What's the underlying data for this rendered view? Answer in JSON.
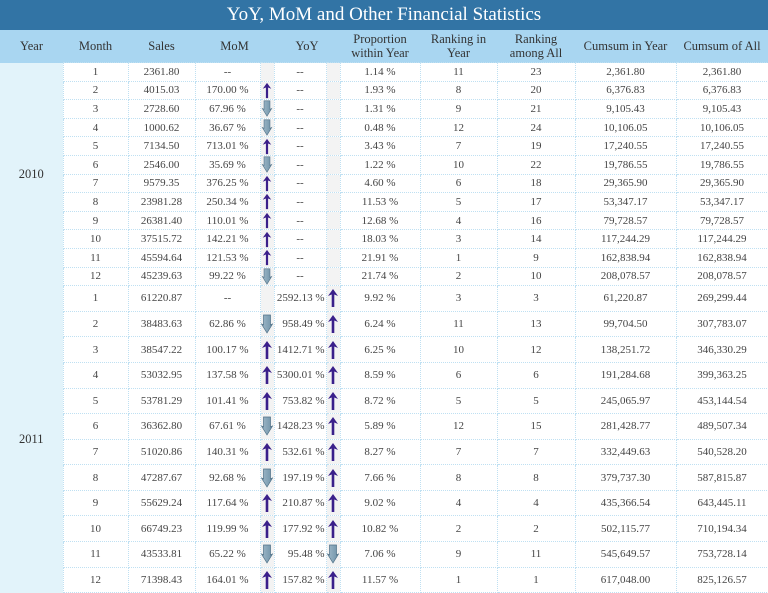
{
  "title": "YoY, MoM and Other Financial Statistics",
  "colors": {
    "title_bg": "#3274a5",
    "header_bg": "#a9d6f1",
    "year_bg": "#e2f3fa",
    "up_arrow": "#3a1f8a",
    "down_arrow": "#6f92a8"
  },
  "headers": {
    "year": "Year",
    "month": "Month",
    "sales": "Sales",
    "mom": "MoM",
    "yoy": "YoY",
    "proportion": "Proportion within Year",
    "rank_year": "Ranking in Year",
    "rank_all": "Ranking among All",
    "cumsum_year": "Cumsum in Year",
    "cumsum_all": "Cumsum of All"
  },
  "groups": [
    {
      "year": "2010",
      "rows": [
        {
          "month": "1",
          "sales": "2361.80",
          "mom": "--",
          "mom_trend": null,
          "yoy": "--",
          "yoy_trend": null,
          "proportion": "1.14 %",
          "rank_year": "11",
          "rank_all": "23",
          "cumsum_year": "2,361.80",
          "cumsum_all": "2,361.80"
        },
        {
          "month": "2",
          "sales": "4015.03",
          "mom": "170.00 %",
          "mom_trend": "up",
          "yoy": "--",
          "yoy_trend": null,
          "proportion": "1.93 %",
          "rank_year": "8",
          "rank_all": "20",
          "cumsum_year": "6,376.83",
          "cumsum_all": "6,376.83"
        },
        {
          "month": "3",
          "sales": "2728.60",
          "mom": "67.96 %",
          "mom_trend": "down",
          "yoy": "--",
          "yoy_trend": null,
          "proportion": "1.31 %",
          "rank_year": "9",
          "rank_all": "21",
          "cumsum_year": "9,105.43",
          "cumsum_all": "9,105.43"
        },
        {
          "month": "4",
          "sales": "1000.62",
          "mom": "36.67 %",
          "mom_trend": "down",
          "yoy": "--",
          "yoy_trend": null,
          "proportion": "0.48 %",
          "rank_year": "12",
          "rank_all": "24",
          "cumsum_year": "10,106.05",
          "cumsum_all": "10,106.05"
        },
        {
          "month": "5",
          "sales": "7134.50",
          "mom": "713.01 %",
          "mom_trend": "up",
          "yoy": "--",
          "yoy_trend": null,
          "proportion": "3.43 %",
          "rank_year": "7",
          "rank_all": "19",
          "cumsum_year": "17,240.55",
          "cumsum_all": "17,240.55"
        },
        {
          "month": "6",
          "sales": "2546.00",
          "mom": "35.69 %",
          "mom_trend": "down",
          "yoy": "--",
          "yoy_trend": null,
          "proportion": "1.22 %",
          "rank_year": "10",
          "rank_all": "22",
          "cumsum_year": "19,786.55",
          "cumsum_all": "19,786.55"
        },
        {
          "month": "7",
          "sales": "9579.35",
          "mom": "376.25 %",
          "mom_trend": "up",
          "yoy": "--",
          "yoy_trend": null,
          "proportion": "4.60 %",
          "rank_year": "6",
          "rank_all": "18",
          "cumsum_year": "29,365.90",
          "cumsum_all": "29,365.90"
        },
        {
          "month": "8",
          "sales": "23981.28",
          "mom": "250.34 %",
          "mom_trend": "up",
          "yoy": "--",
          "yoy_trend": null,
          "proportion": "11.53 %",
          "rank_year": "5",
          "rank_all": "17",
          "cumsum_year": "53,347.17",
          "cumsum_all": "53,347.17"
        },
        {
          "month": "9",
          "sales": "26381.40",
          "mom": "110.01 %",
          "mom_trend": "up",
          "yoy": "--",
          "yoy_trend": null,
          "proportion": "12.68 %",
          "rank_year": "4",
          "rank_all": "16",
          "cumsum_year": "79,728.57",
          "cumsum_all": "79,728.57"
        },
        {
          "month": "10",
          "sales": "37515.72",
          "mom": "142.21 %",
          "mom_trend": "up",
          "yoy": "--",
          "yoy_trend": null,
          "proportion": "18.03 %",
          "rank_year": "3",
          "rank_all": "14",
          "cumsum_year": "117,244.29",
          "cumsum_all": "117,244.29"
        },
        {
          "month": "11",
          "sales": "45594.64",
          "mom": "121.53 %",
          "mom_trend": "up",
          "yoy": "--",
          "yoy_trend": null,
          "proportion": "21.91 %",
          "rank_year": "1",
          "rank_all": "9",
          "cumsum_year": "162,838.94",
          "cumsum_all": "162,838.94"
        },
        {
          "month": "12",
          "sales": "45239.63",
          "mom": "99.22 %",
          "mom_trend": "down",
          "yoy": "--",
          "yoy_trend": null,
          "proportion": "21.74 %",
          "rank_year": "2",
          "rank_all": "10",
          "cumsum_year": "208,078.57",
          "cumsum_all": "208,078.57"
        }
      ]
    },
    {
      "year": "2011",
      "rows": [
        {
          "month": "1",
          "sales": "61220.87",
          "mom": "--",
          "mom_trend": null,
          "yoy": "2592.13 %",
          "yoy_trend": "up",
          "proportion": "9.92 %",
          "rank_year": "3",
          "rank_all": "3",
          "cumsum_year": "61,220.87",
          "cumsum_all": "269,299.44"
        },
        {
          "month": "2",
          "sales": "38483.63",
          "mom": "62.86 %",
          "mom_trend": "down",
          "yoy": "958.49 %",
          "yoy_trend": "up",
          "proportion": "6.24 %",
          "rank_year": "11",
          "rank_all": "13",
          "cumsum_year": "99,704.50",
          "cumsum_all": "307,783.07"
        },
        {
          "month": "3",
          "sales": "38547.22",
          "mom": "100.17 %",
          "mom_trend": "up",
          "yoy": "1412.71 %",
          "yoy_trend": "up",
          "proportion": "6.25 %",
          "rank_year": "10",
          "rank_all": "12",
          "cumsum_year": "138,251.72",
          "cumsum_all": "346,330.29"
        },
        {
          "month": "4",
          "sales": "53032.95",
          "mom": "137.58 %",
          "mom_trend": "up",
          "yoy": "5300.01 %",
          "yoy_trend": "up",
          "proportion": "8.59 %",
          "rank_year": "6",
          "rank_all": "6",
          "cumsum_year": "191,284.68",
          "cumsum_all": "399,363.25"
        },
        {
          "month": "5",
          "sales": "53781.29",
          "mom": "101.41 %",
          "mom_trend": "up",
          "yoy": "753.82 %",
          "yoy_trend": "up",
          "proportion": "8.72 %",
          "rank_year": "5",
          "rank_all": "5",
          "cumsum_year": "245,065.97",
          "cumsum_all": "453,144.54"
        },
        {
          "month": "6",
          "sales": "36362.80",
          "mom": "67.61 %",
          "mom_trend": "down",
          "yoy": "1428.23 %",
          "yoy_trend": "up",
          "proportion": "5.89 %",
          "rank_year": "12",
          "rank_all": "15",
          "cumsum_year": "281,428.77",
          "cumsum_all": "489,507.34"
        },
        {
          "month": "7",
          "sales": "51020.86",
          "mom": "140.31 %",
          "mom_trend": "up",
          "yoy": "532.61 %",
          "yoy_trend": "up",
          "proportion": "8.27 %",
          "rank_year": "7",
          "rank_all": "7",
          "cumsum_year": "332,449.63",
          "cumsum_all": "540,528.20"
        },
        {
          "month": "8",
          "sales": "47287.67",
          "mom": "92.68 %",
          "mom_trend": "down",
          "yoy": "197.19 %",
          "yoy_trend": "up",
          "proportion": "7.66 %",
          "rank_year": "8",
          "rank_all": "8",
          "cumsum_year": "379,737.30",
          "cumsum_all": "587,815.87"
        },
        {
          "month": "9",
          "sales": "55629.24",
          "mom": "117.64 %",
          "mom_trend": "up",
          "yoy": "210.87 %",
          "yoy_trend": "up",
          "proportion": "9.02 %",
          "rank_year": "4",
          "rank_all": "4",
          "cumsum_year": "435,366.54",
          "cumsum_all": "643,445.11"
        },
        {
          "month": "10",
          "sales": "66749.23",
          "mom": "119.99 %",
          "mom_trend": "up",
          "yoy": "177.92 %",
          "yoy_trend": "up",
          "proportion": "10.82 %",
          "rank_year": "2",
          "rank_all": "2",
          "cumsum_year": "502,115.77",
          "cumsum_all": "710,194.34"
        },
        {
          "month": "11",
          "sales": "43533.81",
          "mom": "65.22 %",
          "mom_trend": "down",
          "yoy": "95.48 %",
          "yoy_trend": "down",
          "proportion": "7.06 %",
          "rank_year": "9",
          "rank_all": "11",
          "cumsum_year": "545,649.57",
          "cumsum_all": "753,728.14"
        },
        {
          "month": "12",
          "sales": "71398.43",
          "mom": "164.01 %",
          "mom_trend": "up",
          "yoy": "157.82 %",
          "yoy_trend": "up",
          "proportion": "11.57 %",
          "rank_year": "1",
          "rank_all": "1",
          "cumsum_year": "617,048.00",
          "cumsum_all": "825,126.57"
        }
      ]
    }
  ]
}
